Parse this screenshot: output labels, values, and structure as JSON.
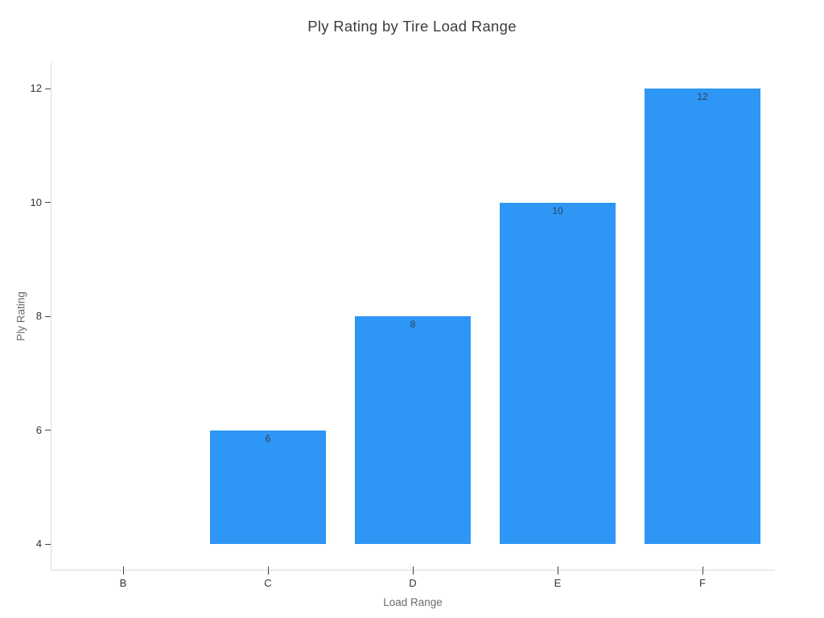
{
  "title": "Ply Rating by Tire Load Range",
  "chart_data": {
    "type": "bar",
    "title": "Ply Rating by Tire Load Range",
    "xlabel": "Load Range",
    "ylabel": "Ply Rating",
    "categories": [
      "B",
      "C",
      "D",
      "E",
      "F"
    ],
    "values": [
      4,
      6,
      8,
      10,
      12
    ],
    "bars": [
      {
        "category": "B",
        "value": 4,
        "label": ""
      },
      {
        "category": "C",
        "value": 6,
        "label": "6"
      },
      {
        "category": "D",
        "value": 8,
        "label": "8"
      },
      {
        "category": "E",
        "value": 10,
        "label": "10"
      },
      {
        "category": "F",
        "value": 12,
        "label": "12"
      }
    ],
    "baseline": 4,
    "yticks": [
      4,
      6,
      8,
      10,
      12
    ],
    "ylim": [
      3.55,
      12.45
    ],
    "grid": false,
    "legend": "none",
    "colors": {
      "bar": "#2e96f5",
      "bar_label": "#2e4057",
      "axis_line": "#d9d9d9",
      "tick_mark": "#444444",
      "tick_label": "#333333",
      "axis_title": "#6b6b6b",
      "title": "#3b3b3b",
      "background": "#ffffff"
    }
  }
}
